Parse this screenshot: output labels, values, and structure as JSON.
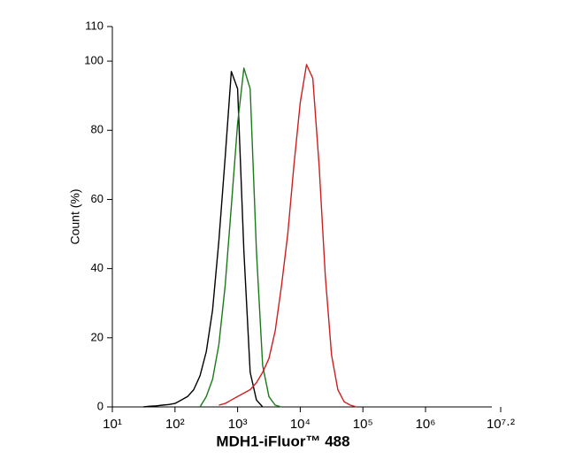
{
  "chart_data": {
    "type": "line",
    "x_label": "MDH1-iFluor™ 488",
    "y_label": "Count  (%)",
    "x_scale": "log",
    "xlim": [
      10,
      15848931.9
    ],
    "xticks": [
      {
        "value": 10,
        "label": "10¹"
      },
      {
        "value": 100,
        "label": "10²"
      },
      {
        "value": 1000,
        "label": "10³"
      },
      {
        "value": 10000,
        "label": "10⁴"
      },
      {
        "value": 100000,
        "label": "10⁵"
      },
      {
        "value": 1000000,
        "label": "10⁶"
      },
      {
        "value": 15848931.9,
        "label": "10⁷·²"
      }
    ],
    "ylim": [
      0,
      110
    ],
    "yticks": [
      0,
      20,
      40,
      60,
      80,
      100,
      110
    ],
    "x": [
      31.6,
      39.8,
      50.1,
      63.1,
      79.4,
      100,
      125.9,
      158.5,
      199.5,
      251.2,
      316.2,
      398.1,
      501.2,
      631,
      794.3,
      1000,
      1258.9,
      1584.9,
      1995.3,
      2511.9,
      3162.3,
      3981.1,
      5011.9,
      6309.6,
      7943.3,
      10000,
      12589.3,
      15848.9,
      19952.6,
      25118.9,
      31622.8,
      39810.7,
      50118.7,
      63095.7,
      79432.8,
      100000
    ],
    "series": [
      {
        "color": "#000000",
        "values": [
          0,
          0.2,
          0.3,
          0.5,
          0.7,
          1,
          2,
          3,
          5,
          9,
          16,
          28,
          48,
          72,
          97,
          92,
          45,
          10,
          2,
          0,
          null,
          null,
          null,
          null,
          null,
          null,
          null,
          null,
          null,
          null,
          null,
          null,
          null,
          null,
          null,
          null
        ]
      },
      {
        "color": "#1a7a1a",
        "values": [
          null,
          null,
          null,
          null,
          null,
          null,
          null,
          null,
          null,
          0,
          3,
          8,
          18,
          35,
          58,
          82,
          98,
          92,
          45,
          12,
          3,
          0.5,
          0,
          null,
          null,
          null,
          null,
          null,
          null,
          null,
          null,
          null,
          null,
          null,
          null,
          null
        ]
      },
      {
        "color": "#cc2020",
        "values": [
          null,
          null,
          null,
          null,
          null,
          null,
          null,
          null,
          null,
          null,
          null,
          null,
          0.5,
          1,
          2,
          3,
          4,
          5,
          7,
          10,
          14,
          22,
          35,
          50,
          70,
          88,
          99,
          95,
          70,
          38,
          15,
          5,
          1.5,
          0.5,
          0,
          null
        ]
      }
    ]
  }
}
